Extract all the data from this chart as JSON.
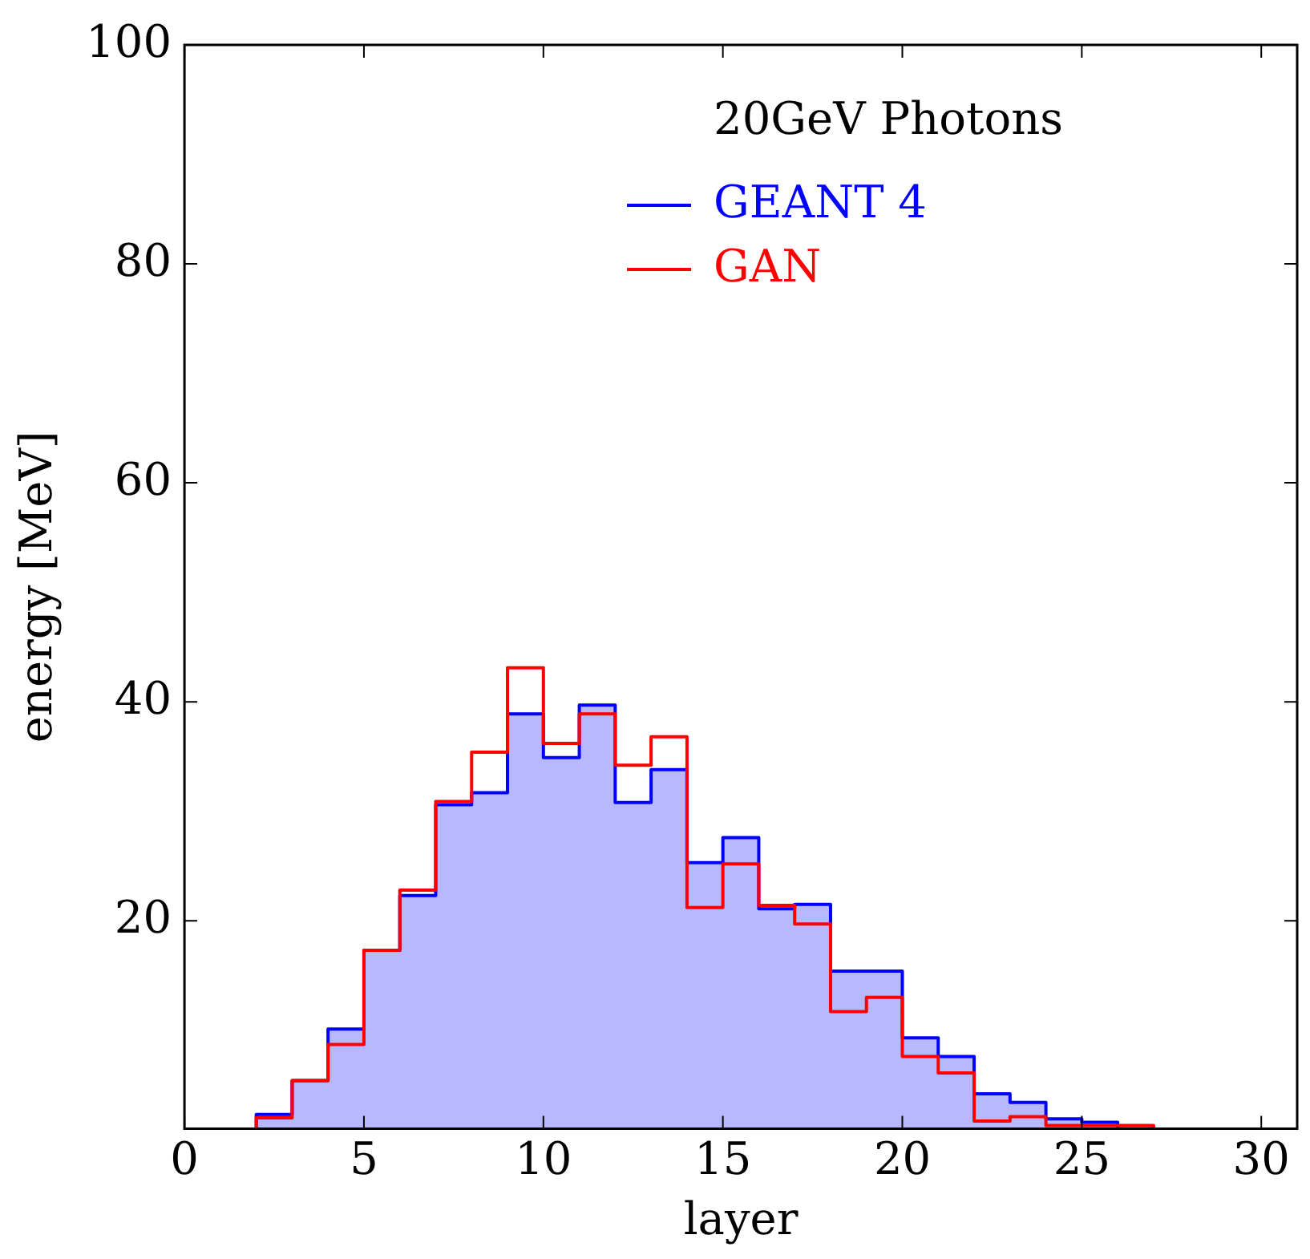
{
  "chart_data": {
    "type": "histogram",
    "xlabel": "layer",
    "ylabel": "energy [MeV]",
    "legend_title": "20GeV Photons",
    "bins": [
      2,
      3,
      4,
      5,
      6,
      7,
      8,
      9,
      10,
      11,
      12,
      13,
      14,
      15,
      16,
      17,
      18,
      19,
      20,
      21,
      22,
      23,
      24,
      25,
      26,
      27
    ],
    "series": [
      {
        "name": "GEANT 4",
        "color": "#0000ff",
        "values": [
          2.3,
          5.4,
          10.1,
          17.3,
          22.3,
          30.6,
          31.7,
          38.9,
          34.9,
          39.7,
          30.8,
          33.8,
          25.3,
          27.6,
          21.1,
          21.5,
          15.4,
          15.4,
          9.3,
          7.6,
          4.2,
          3.4,
          1.9,
          1.6,
          1
        ]
      },
      {
        "name": "GAN",
        "color": "#ff0000",
        "values": [
          2.0,
          5.4,
          8.7,
          17.3,
          22.8,
          30.9,
          35.4,
          43.1,
          36.2,
          38.9,
          34.2,
          36.8,
          21.2,
          25.2,
          21.4,
          19.7,
          11.7,
          13.0,
          7.6,
          6.1,
          1.7,
          2.1,
          1.3,
          1.3,
          1.3
        ]
      }
    ],
    "xlim": [
      0,
      31
    ],
    "xticks": [
      0,
      5,
      10,
      15,
      20,
      25,
      30
    ],
    "ylim": [
      1,
      100
    ],
    "yticks": [
      20,
      40,
      60,
      80,
      100
    ],
    "grid": false,
    "legend": "top right"
  }
}
